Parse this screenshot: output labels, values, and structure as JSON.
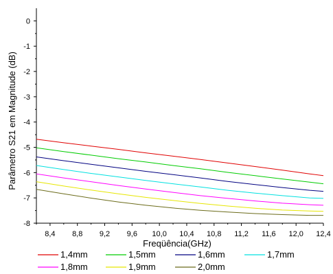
{
  "chart_data": {
    "type": "line",
    "title": "",
    "xlabel": "Freqüência(GHz)",
    "ylabel": "Parâmetro S21 em Magnitude (dB)",
    "xlim": [
      8.2,
      12.4
    ],
    "ylim": [
      -8,
      0.5
    ],
    "x_ticks": [
      "8,4",
      "8,8",
      "9,2",
      "9,6",
      "10,0",
      "10,4",
      "10,8",
      "11,2",
      "11,6",
      "12,0",
      "12,4"
    ],
    "x_tick_values": [
      8.4,
      8.8,
      9.2,
      9.6,
      10.0,
      10.4,
      10.8,
      11.2,
      11.6,
      12.0,
      12.4
    ],
    "y_ticks": [
      "-8",
      "-7",
      "-6",
      "-5",
      "-4",
      "-3",
      "-2",
      "-1",
      "0"
    ],
    "y_tick_values": [
      -8,
      -7,
      -6,
      -5,
      -4,
      -3,
      -2,
      -1,
      0
    ],
    "grid": false,
    "legend_position": "bottom",
    "x": [
      8.2,
      8.6,
      9.0,
      9.4,
      9.8,
      10.2,
      10.6,
      11.0,
      11.4,
      11.8,
      12.2,
      12.4
    ],
    "series": [
      {
        "name": "1,4mm",
        "color": "#e00000",
        "values": [
          -4.68,
          -4.82,
          -4.95,
          -5.08,
          -5.22,
          -5.35,
          -5.48,
          -5.62,
          -5.76,
          -5.9,
          -6.05,
          -6.12
        ]
      },
      {
        "name": "1,5mm",
        "color": "#00cc00",
        "values": [
          -5.02,
          -5.17,
          -5.31,
          -5.45,
          -5.58,
          -5.72,
          -5.85,
          -5.99,
          -6.12,
          -6.25,
          -6.38,
          -6.44
        ]
      },
      {
        "name": "1,6mm",
        "color": "#000080",
        "values": [
          -5.38,
          -5.53,
          -5.67,
          -5.81,
          -5.95,
          -6.08,
          -6.21,
          -6.35,
          -6.47,
          -6.59,
          -6.7,
          -6.74
        ]
      },
      {
        "name": "1,7mm",
        "color": "#00e0e0",
        "values": [
          -5.72,
          -5.88,
          -6.03,
          -6.17,
          -6.31,
          -6.44,
          -6.57,
          -6.7,
          -6.81,
          -6.91,
          -7.0,
          -7.02
        ]
      },
      {
        "name": "1,8mm",
        "color": "#ff00ff",
        "values": [
          -6.05,
          -6.21,
          -6.36,
          -6.51,
          -6.65,
          -6.78,
          -6.91,
          -7.02,
          -7.12,
          -7.21,
          -7.27,
          -7.29
        ]
      },
      {
        "name": "1,9mm",
        "color": "#e6e600",
        "values": [
          -6.36,
          -6.53,
          -6.69,
          -6.84,
          -6.98,
          -7.1,
          -7.22,
          -7.32,
          -7.41,
          -7.48,
          -7.52,
          -7.53
        ]
      },
      {
        "name": "2,0mm",
        "color": "#6b6b1a",
        "values": [
          -6.66,
          -6.84,
          -7.01,
          -7.16,
          -7.29,
          -7.4,
          -7.49,
          -7.56,
          -7.62,
          -7.66,
          -7.69,
          -7.69
        ]
      }
    ]
  }
}
